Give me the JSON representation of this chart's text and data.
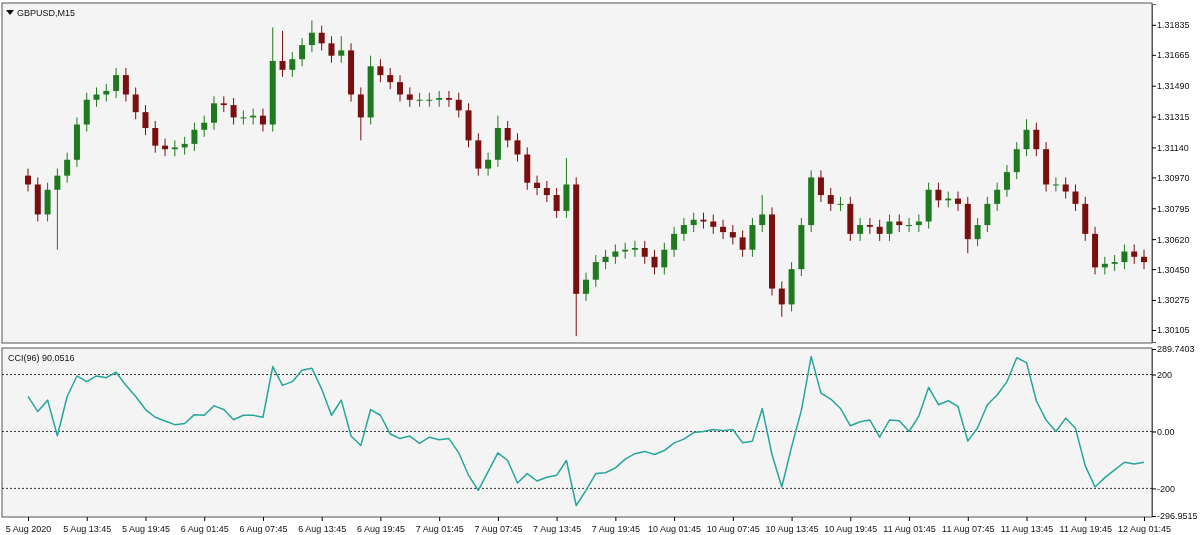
{
  "chart_data": [
    {
      "type": "candlestick",
      "title": "GBPUSD,M15",
      "categories": [
        null,
        null,
        null,
        null,
        null,
        null,
        null,
        null,
        null,
        null,
        null,
        null,
        null,
        null,
        null,
        null,
        null,
        null,
        null,
        null,
        null,
        null,
        null,
        null,
        null,
        null,
        null,
        null,
        null,
        null,
        null,
        null,
        null,
        null,
        null,
        null,
        null,
        null,
        null,
        null,
        null,
        null,
        null,
        null,
        null,
        null,
        null,
        null,
        null,
        null,
        null,
        null,
        null,
        null,
        null,
        null,
        null,
        null,
        null,
        null,
        null,
        null,
        null,
        null,
        null,
        null,
        null,
        null,
        null,
        null,
        null,
        null,
        null,
        null,
        null,
        null,
        null,
        null,
        null,
        null,
        null,
        null,
        null,
        null,
        null,
        null,
        null,
        null,
        null,
        null,
        null,
        null,
        null,
        null,
        null,
        null,
        null,
        null,
        null,
        null,
        null,
        null,
        null,
        null,
        null,
        null,
        null,
        null,
        null,
        null,
        null,
        null,
        null,
        null,
        null
      ],
      "ylim": [
        1.30037,
        1.31953
      ],
      "yticks": [
        {
          "value": 1.31835,
          "label": "1.31835"
        },
        {
          "value": 1.31665,
          "label": "1.31665"
        },
        {
          "value": 1.3149,
          "label": "1.31490"
        },
        {
          "value": 1.31315,
          "label": "1.31315"
        },
        {
          "value": 1.3114,
          "label": "1.31140"
        },
        {
          "value": 1.3097,
          "label": "1.30970"
        },
        {
          "value": 1.30795,
          "label": "1.30795"
        },
        {
          "value": 1.3062,
          "label": "1.30620"
        },
        {
          "value": 1.3045,
          "label": "1.30450"
        },
        {
          "value": 1.30275,
          "label": "1.30275"
        },
        {
          "value": 1.30105,
          "label": "1.30105"
        }
      ],
      "ohlc": [
        [
          1.3098,
          1.3102,
          1.3089,
          1.3093
        ],
        [
          1.3093,
          1.3097,
          1.3072,
          1.3076
        ],
        [
          1.3076,
          1.3094,
          1.3072,
          1.309
        ],
        [
          1.309,
          1.3102,
          1.3056,
          1.3098
        ],
        [
          1.3098,
          1.3111,
          1.3094,
          1.3107
        ],
        [
          1.3107,
          1.3131,
          1.3103,
          1.3127
        ],
        [
          1.3127,
          1.3145,
          1.3123,
          1.3141
        ],
        [
          1.3141,
          1.3148,
          1.3137,
          1.3144
        ],
        [
          1.3144,
          1.315,
          1.314,
          1.3146
        ],
        [
          1.3146,
          1.3159,
          1.3142,
          1.3155
        ],
        [
          1.3155,
          1.3159,
          1.314,
          1.3144
        ],
        [
          1.3144,
          1.3148,
          1.313,
          1.3134
        ],
        [
          1.3134,
          1.3138,
          1.3121,
          1.3125
        ],
        [
          1.3125,
          1.3129,
          1.3111,
          1.3115
        ],
        [
          1.3115,
          1.3119,
          1.3109,
          1.3113
        ],
        [
          1.3113,
          1.3118,
          1.3109,
          1.3114
        ],
        [
          1.3114,
          1.312,
          1.311,
          1.3116
        ],
        [
          1.3116,
          1.3128,
          1.3112,
          1.3124
        ],
        [
          1.3124,
          1.3132,
          1.312,
          1.3128
        ],
        [
          1.3128,
          1.3143,
          1.3124,
          1.3139
        ],
        [
          1.3139,
          1.3143,
          1.3134,
          1.3138
        ],
        [
          1.3138,
          1.3142,
          1.3127,
          1.3131
        ],
        [
          1.3131,
          1.3135,
          1.3127,
          1.3131
        ],
        [
          1.3131,
          1.3136,
          1.3127,
          1.3132
        ],
        [
          1.3132,
          1.3136,
          1.3123,
          1.3127
        ],
        [
          1.3127,
          1.3182,
          1.3123,
          1.3163
        ],
        [
          1.3163,
          1.318,
          1.3154,
          1.3158
        ],
        [
          1.3158,
          1.3168,
          1.3154,
          1.3164
        ],
        [
          1.3164,
          1.3176,
          1.316,
          1.3172
        ],
        [
          1.3172,
          1.3186,
          1.3168,
          1.3179
        ],
        [
          1.3179,
          1.3183,
          1.3169,
          1.3173
        ],
        [
          1.3173,
          1.3177,
          1.3162,
          1.3166
        ],
        [
          1.3166,
          1.3177,
          1.3162,
          1.3169
        ],
        [
          1.3169,
          1.3173,
          1.314,
          1.3144
        ],
        [
          1.3144,
          1.3148,
          1.3118,
          1.3131
        ],
        [
          1.3131,
          1.3166,
          1.3127,
          1.316
        ],
        [
          1.316,
          1.3164,
          1.3151,
          1.3155
        ],
        [
          1.3155,
          1.3159,
          1.3147,
          1.3151
        ],
        [
          1.3151,
          1.3155,
          1.314,
          1.3144
        ],
        [
          1.3144,
          1.3148,
          1.3137,
          1.3141
        ],
        [
          1.3141,
          1.3145,
          1.3137,
          1.3141
        ],
        [
          1.3141,
          1.3145,
          1.3137,
          1.3141
        ],
        [
          1.3141,
          1.3146,
          1.3137,
          1.3142
        ],
        [
          1.3142,
          1.3146,
          1.3137,
          1.3141
        ],
        [
          1.3141,
          1.3145,
          1.3131,
          1.3135
        ],
        [
          1.3135,
          1.3139,
          1.3114,
          1.3118
        ],
        [
          1.3118,
          1.3122,
          1.3098,
          1.3102
        ],
        [
          1.3102,
          1.3111,
          1.3098,
          1.3107
        ],
        [
          1.3107,
          1.3132,
          1.3103,
          1.3125
        ],
        [
          1.3125,
          1.3129,
          1.3114,
          1.3118
        ],
        [
          1.3118,
          1.3122,
          1.3106,
          1.311
        ],
        [
          1.311,
          1.3114,
          1.309,
          1.3094
        ],
        [
          1.3094,
          1.3098,
          1.3087,
          1.3091
        ],
        [
          1.3091,
          1.3095,
          1.3083,
          1.3087
        ],
        [
          1.3087,
          1.3091,
          1.3074,
          1.3078
        ],
        [
          1.3078,
          1.3108,
          1.3074,
          1.3093
        ],
        [
          1.3093,
          1.3097,
          1.3007,
          1.3031
        ],
        [
          1.3031,
          1.3043,
          1.3027,
          1.3039
        ],
        [
          1.3039,
          1.3053,
          1.3035,
          1.3049
        ],
        [
          1.3049,
          1.3056,
          1.3045,
          1.3052
        ],
        [
          1.3052,
          1.3059,
          1.3048,
          1.3055
        ],
        [
          1.3055,
          1.306,
          1.3051,
          1.3056
        ],
        [
          1.3056,
          1.3061,
          1.3052,
          1.3057
        ],
        [
          1.3057,
          1.3061,
          1.3048,
          1.3052
        ],
        [
          1.3052,
          1.3056,
          1.3042,
          1.3046
        ],
        [
          1.3046,
          1.306,
          1.3042,
          1.3056
        ],
        [
          1.3056,
          1.3069,
          1.3052,
          1.3065
        ],
        [
          1.3065,
          1.3074,
          1.3061,
          1.307
        ],
        [
          1.307,
          1.3077,
          1.3066,
          1.3073
        ],
        [
          1.3073,
          1.3077,
          1.3068,
          1.3072
        ],
        [
          1.3072,
          1.3076,
          1.3065,
          1.3069
        ],
        [
          1.3069,
          1.3073,
          1.3062,
          1.3066
        ],
        [
          1.3066,
          1.307,
          1.3059,
          1.3063
        ],
        [
          1.3063,
          1.3067,
          1.3052,
          1.3056
        ],
        [
          1.3056,
          1.3074,
          1.3052,
          1.307
        ],
        [
          1.307,
          1.3087,
          1.3066,
          1.3076
        ],
        [
          1.3076,
          1.308,
          1.303,
          1.3034
        ],
        [
          1.3034,
          1.3038,
          1.3018,
          1.3025
        ],
        [
          1.3025,
          1.3049,
          1.3021,
          1.3045
        ],
        [
          1.3045,
          1.3074,
          1.3041,
          1.307
        ],
        [
          1.307,
          1.3101,
          1.3066,
          1.3097
        ],
        [
          1.3097,
          1.3101,
          1.3083,
          1.3087
        ],
        [
          1.3087,
          1.3091,
          1.3078,
          1.3082
        ],
        [
          1.3082,
          1.3086,
          1.3078,
          1.3082
        ],
        [
          1.3082,
          1.3086,
          1.3061,
          1.3065
        ],
        [
          1.3065,
          1.3074,
          1.3061,
          1.307
        ],
        [
          1.307,
          1.3074,
          1.3065,
          1.3069
        ],
        [
          1.3069,
          1.3073,
          1.3061,
          1.3065
        ],
        [
          1.3065,
          1.3076,
          1.3061,
          1.3072
        ],
        [
          1.3072,
          1.3076,
          1.3066,
          1.307
        ],
        [
          1.307,
          1.3074,
          1.3066,
          1.307
        ],
        [
          1.307,
          1.3076,
          1.3066,
          1.3072
        ],
        [
          1.3072,
          1.3094,
          1.3068,
          1.309
        ],
        [
          1.309,
          1.3094,
          1.308,
          1.3084
        ],
        [
          1.3084,
          1.3089,
          1.308,
          1.3085
        ],
        [
          1.3085,
          1.3089,
          1.3078,
          1.3082
        ],
        [
          1.3082,
          1.3086,
          1.3054,
          1.3062
        ],
        [
          1.3062,
          1.3074,
          1.3058,
          1.307
        ],
        [
          1.307,
          1.3086,
          1.3066,
          1.3082
        ],
        [
          1.3082,
          1.3094,
          1.3078,
          1.309
        ],
        [
          1.309,
          1.3104,
          1.3086,
          1.31
        ],
        [
          1.31,
          1.3117,
          1.3096,
          1.3113
        ],
        [
          1.3113,
          1.313,
          1.3109,
          1.3124
        ],
        [
          1.3124,
          1.3128,
          1.3109,
          1.3113
        ],
        [
          1.3113,
          1.3117,
          1.3089,
          1.3093
        ],
        [
          1.3093,
          1.3097,
          1.3089,
          1.3093
        ],
        [
          1.3093,
          1.3097,
          1.3085,
          1.3089
        ],
        [
          1.3089,
          1.3093,
          1.3078,
          1.3082
        ],
        [
          1.3082,
          1.3086,
          1.3061,
          1.3065
        ],
        [
          1.3065,
          1.3069,
          1.3042,
          1.3046
        ],
        [
          1.3046,
          1.3052,
          1.3042,
          1.3048
        ],
        [
          1.3048,
          1.3053,
          1.3044,
          1.3049
        ],
        [
          1.3049,
          1.3059,
          1.3045,
          1.3055
        ],
        [
          1.3055,
          1.3059,
          1.3048,
          1.3052
        ],
        [
          1.3052,
          1.3056,
          1.3045,
          1.3049
        ]
      ]
    },
    {
      "type": "line",
      "title": "CCI(96) 90.0516",
      "categories": [
        "5 Aug 2020",
        null,
        null,
        null,
        null,
        null,
        "5 Aug 13:45",
        null,
        null,
        null,
        null,
        null,
        "5 Aug 19:45",
        null,
        null,
        null,
        null,
        null,
        "6 Aug 01:45",
        null,
        null,
        null,
        null,
        null,
        "6 Aug 07:45",
        null,
        null,
        null,
        null,
        null,
        "6 Aug 13:45",
        null,
        null,
        null,
        null,
        null,
        "6 Aug 19:45",
        null,
        null,
        null,
        null,
        null,
        "7 Aug 01:45",
        null,
        null,
        null,
        null,
        null,
        "7 Aug 07:45",
        null,
        null,
        null,
        null,
        null,
        "7 Aug 13:45",
        null,
        null,
        null,
        null,
        null,
        "7 Aug 19:45",
        null,
        null,
        null,
        null,
        null,
        "10 Aug 01:45",
        null,
        null,
        null,
        null,
        null,
        "10 Aug 07:45",
        null,
        null,
        null,
        null,
        null,
        "10 Aug 13:45",
        null,
        null,
        null,
        null,
        null,
        "10 Aug 19:45",
        null,
        null,
        null,
        null,
        null,
        "11 Aug 01:45",
        null,
        null,
        null,
        null,
        null,
        "11 Aug 07:45",
        null,
        null,
        null,
        null,
        null,
        "11 Aug 13:45",
        null,
        null,
        null,
        null,
        null,
        "11 Aug 19:45",
        null,
        null,
        null,
        null,
        null,
        "12 Aug 01:45"
      ],
      "ylim": [
        -296.9515,
        289.7403
      ],
      "yticks": [
        289.7403,
        200,
        {
          "value": 0,
          "label": "0.00"
        },
        -200,
        -296.9515
      ],
      "ref_lines": [
        {
          "axis": "y",
          "value": 200,
          "color": "#333333",
          "line_style": "dotted"
        },
        {
          "axis": "y",
          "value": 0,
          "color": "#333333",
          "line_style": "dotted"
        },
        {
          "axis": "y",
          "value": -200,
          "color": "#333333",
          "line_style": "dotted"
        }
      ],
      "series": [
        {
          "color": "#26a69a",
          "values": [
            123,
            70,
            110,
            -15,
            123,
            195,
            175,
            195,
            189,
            208,
            162,
            123,
            77,
            50,
            37,
            24,
            28,
            59,
            57,
            90,
            77,
            41,
            57,
            57,
            50,
            228,
            162,
            175,
            215,
            222,
            149,
            57,
            110,
            -16,
            -49,
            77,
            57,
            -9,
            -25,
            -16,
            -42,
            -20,
            -29,
            -25,
            -75,
            -154,
            -207,
            -141,
            -75,
            -102,
            -181,
            -148,
            -174,
            -161,
            -154,
            -102,
            -260,
            -207,
            -148,
            -145,
            -128,
            -97,
            -78,
            -70,
            -81,
            -67,
            -40,
            -27,
            -4,
            0,
            7,
            3,
            7,
            -40,
            -34,
            81,
            -81,
            -195,
            -54,
            74,
            263,
            135,
            114,
            81,
            20,
            34,
            40,
            -20,
            40,
            38,
            0,
            54,
            155,
            94,
            108,
            88,
            -34,
            13,
            94,
            128,
            175,
            259,
            242,
            108,
            40,
            0,
            47,
            11,
            -121,
            -195,
            -162,
            -135,
            -108,
            -114,
            -108
          ]
        }
      ]
    }
  ]
}
